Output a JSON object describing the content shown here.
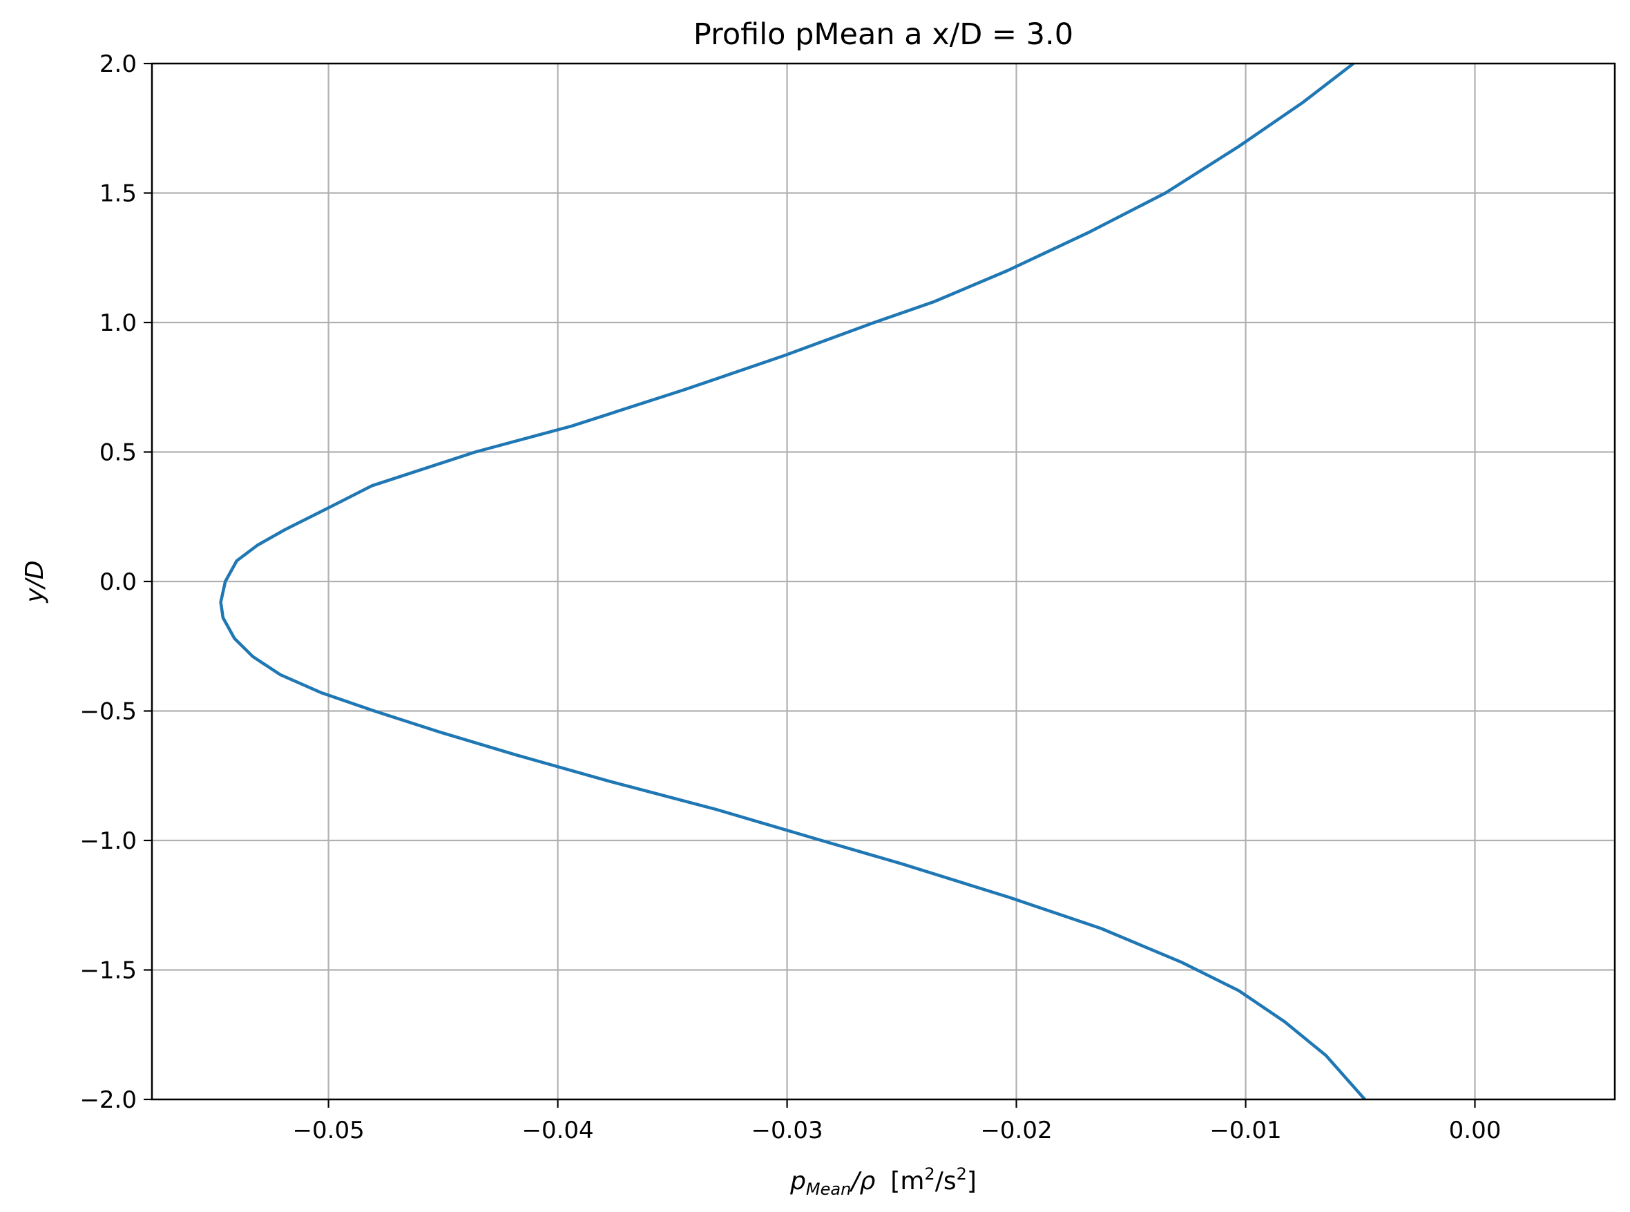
{
  "chart_data": {
    "type": "line",
    "title": "Profilo pMean a x/D = 3.0",
    "xlabel_main": "p",
    "xlabel_sub": "Mean",
    "xlabel_div": "/ρ",
    "xlabel_unit_open": "[m",
    "xlabel_unit_exp1": "2",
    "xlabel_unit_mid": "/s",
    "xlabel_unit_exp2": "2",
    "xlabel_unit_close": "]",
    "ylabel": "y/D",
    "xlim": [
      -0.0577,
      0.0061
    ],
    "ylim": [
      -2.0,
      2.0
    ],
    "x_ticks": [
      -0.05,
      -0.04,
      -0.03,
      -0.02,
      -0.01,
      0.0
    ],
    "x_tick_labels": [
      "−0.05",
      "−0.04",
      "−0.03",
      "−0.02",
      "−0.01",
      "0.00"
    ],
    "y_ticks": [
      2.0,
      1.5,
      1.0,
      0.5,
      0.0,
      -0.5,
      -1.0,
      -1.5,
      -2.0
    ],
    "y_tick_labels": [
      "2.0",
      "1.5",
      "1.0",
      "0.5",
      "0.0",
      "−0.5",
      "−1.0",
      "−1.5",
      "−2.0"
    ],
    "grid": true,
    "series": [
      {
        "color": "#1f77b4",
        "points": [
          [
            -0.0053,
            2.0
          ],
          [
            -0.0075,
            1.85
          ],
          [
            -0.0103,
            1.68
          ],
          [
            -0.0135,
            1.5
          ],
          [
            -0.0168,
            1.35
          ],
          [
            -0.0204,
            1.2
          ],
          [
            -0.0236,
            1.08
          ],
          [
            -0.0262,
            1.0
          ],
          [
            -0.0302,
            0.87
          ],
          [
            -0.0345,
            0.74
          ],
          [
            -0.0394,
            0.6
          ],
          [
            -0.0436,
            0.5
          ],
          [
            -0.0481,
            0.37
          ],
          [
            -0.0501,
            0.28
          ],
          [
            -0.0519,
            0.2
          ],
          [
            -0.0531,
            0.14
          ],
          [
            -0.054,
            0.08
          ],
          [
            -0.0545,
            0.0
          ],
          [
            -0.0547,
            -0.08
          ],
          [
            -0.0546,
            -0.14
          ],
          [
            -0.0541,
            -0.22
          ],
          [
            -0.0533,
            -0.29
          ],
          [
            -0.0521,
            -0.36
          ],
          [
            -0.0503,
            -0.43
          ],
          [
            -0.048,
            -0.5
          ],
          [
            -0.0452,
            -0.58
          ],
          [
            -0.0418,
            -0.67
          ],
          [
            -0.0378,
            -0.77
          ],
          [
            -0.0331,
            -0.88
          ],
          [
            -0.0285,
            -1.0
          ],
          [
            -0.025,
            -1.09
          ],
          [
            -0.0203,
            -1.22
          ],
          [
            -0.0163,
            -1.34
          ],
          [
            -0.0128,
            -1.47
          ],
          [
            -0.0103,
            -1.58
          ],
          [
            -0.0083,
            -1.7
          ],
          [
            -0.0065,
            -1.83
          ],
          [
            -0.0048,
            -2.0
          ]
        ]
      }
    ]
  }
}
